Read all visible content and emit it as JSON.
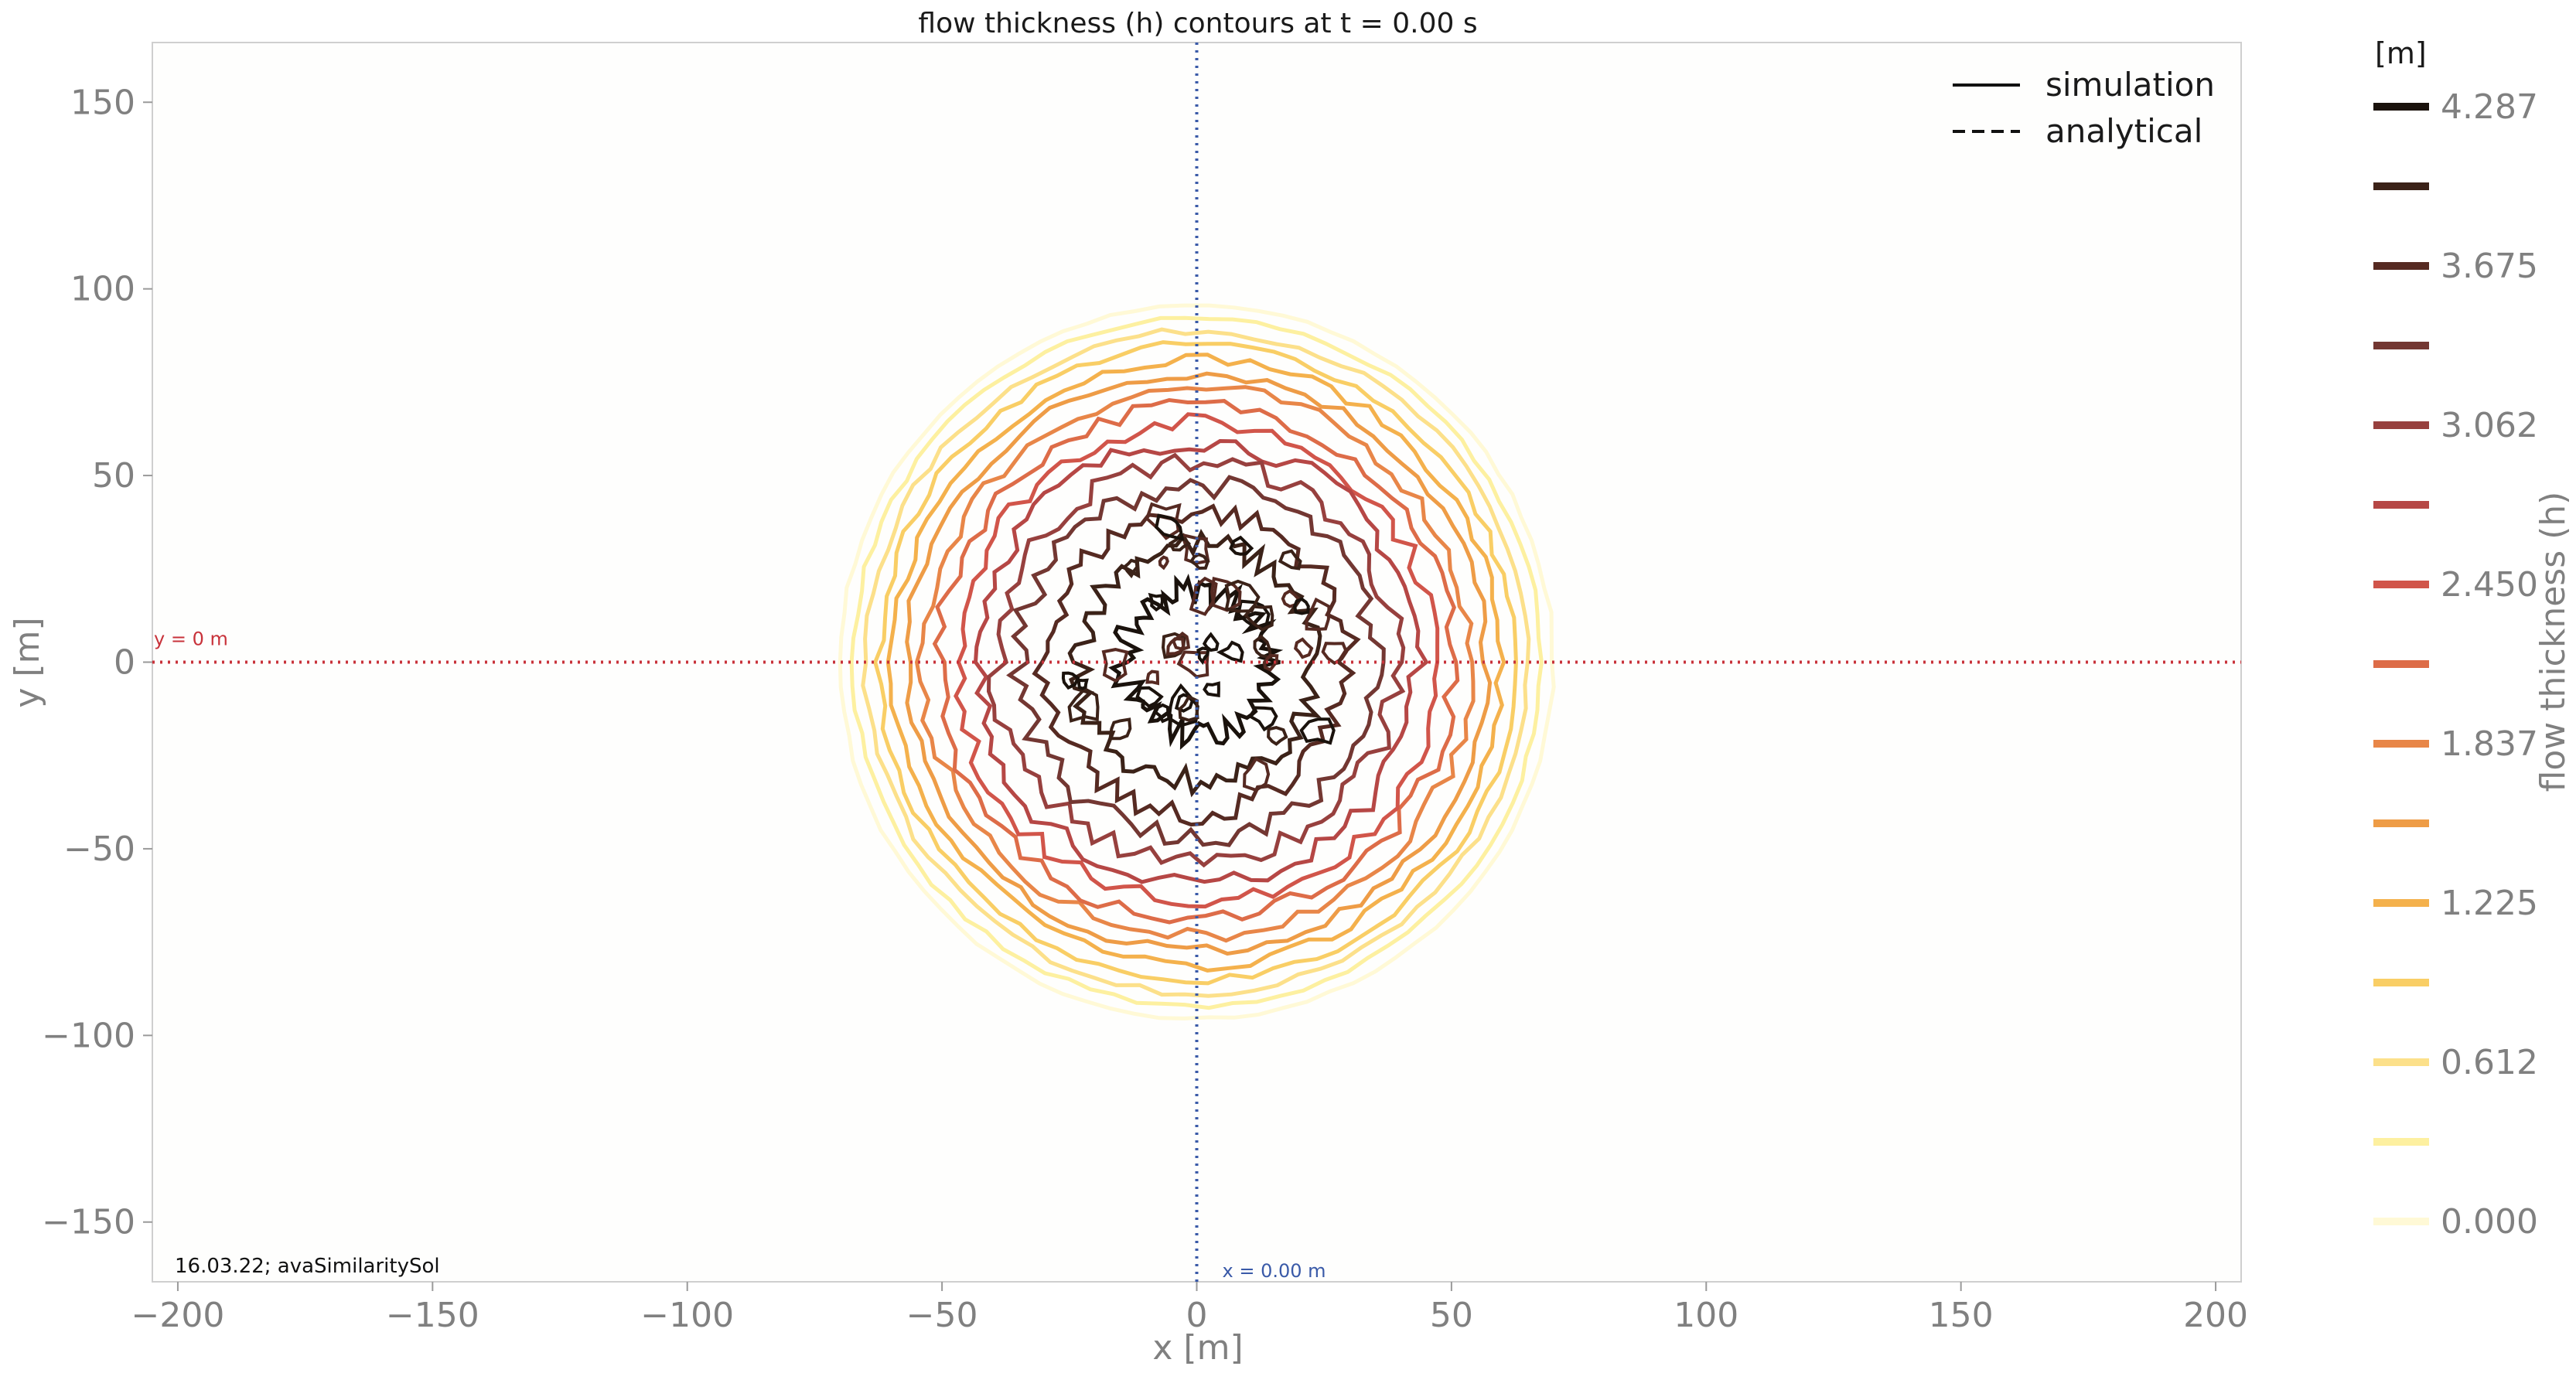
{
  "chart_data": {
    "type": "contour",
    "title": "flow thickness (h) contours at t = 0.00 s",
    "xlabel": "x [m]",
    "ylabel": "y [m]",
    "xlim": [
      -205,
      205
    ],
    "ylim": [
      -166,
      166
    ],
    "xticks": [
      -200,
      -150,
      -100,
      -50,
      0,
      50,
      100,
      150,
      200
    ],
    "yticks": [
      -150,
      -100,
      -50,
      0,
      50,
      100,
      150
    ],
    "xtick_labels": [
      "−200",
      "−150",
      "−100",
      "−50",
      "0",
      "50",
      "100",
      "150",
      "200"
    ],
    "ytick_labels": [
      "−150",
      "−100",
      "−50",
      "0",
      "50",
      "100",
      "150"
    ],
    "grid": false,
    "legend": {
      "placement": "top-right",
      "entries": [
        {
          "label": "simulation",
          "style": "solid"
        },
        {
          "label": "analytical",
          "style": "dashed"
        }
      ]
    },
    "reference_lines": [
      {
        "orientation": "horizontal",
        "value": 0,
        "label": "y = 0 m",
        "color": "#c8323a"
      },
      {
        "orientation": "vertical",
        "value": 0,
        "label": "x = 0.00 m",
        "color": "#3a5aa8"
      }
    ],
    "contour_center": [
      0,
      0
    ],
    "contour_outer_radius_m": 70,
    "contour_levels": [
      0.0,
      0.306,
      0.612,
      0.919,
      1.225,
      1.531,
      1.837,
      2.144,
      2.45,
      2.756,
      3.062,
      3.369,
      3.675,
      3.981,
      4.287
    ],
    "contour_colors": [
      "#fff9d6",
      "#fdf0a0",
      "#fce08a",
      "#f9ce65",
      "#f4b14c",
      "#ee9c46",
      "#e88648",
      "#dd6c48",
      "#d1554a",
      "#b64745",
      "#97403e",
      "#733732",
      "#562a22",
      "#3b2218",
      "#1a120c"
    ],
    "colorbar": {
      "label": "flow thickness (h)",
      "unit": "[m]",
      "tick_labels": [
        "0.000",
        "0.612",
        "1.225",
        "1.837",
        "2.450",
        "3.062",
        "3.675",
        "4.287"
      ]
    },
    "annotation": "16.03.22; avaSimilaritySol"
  }
}
